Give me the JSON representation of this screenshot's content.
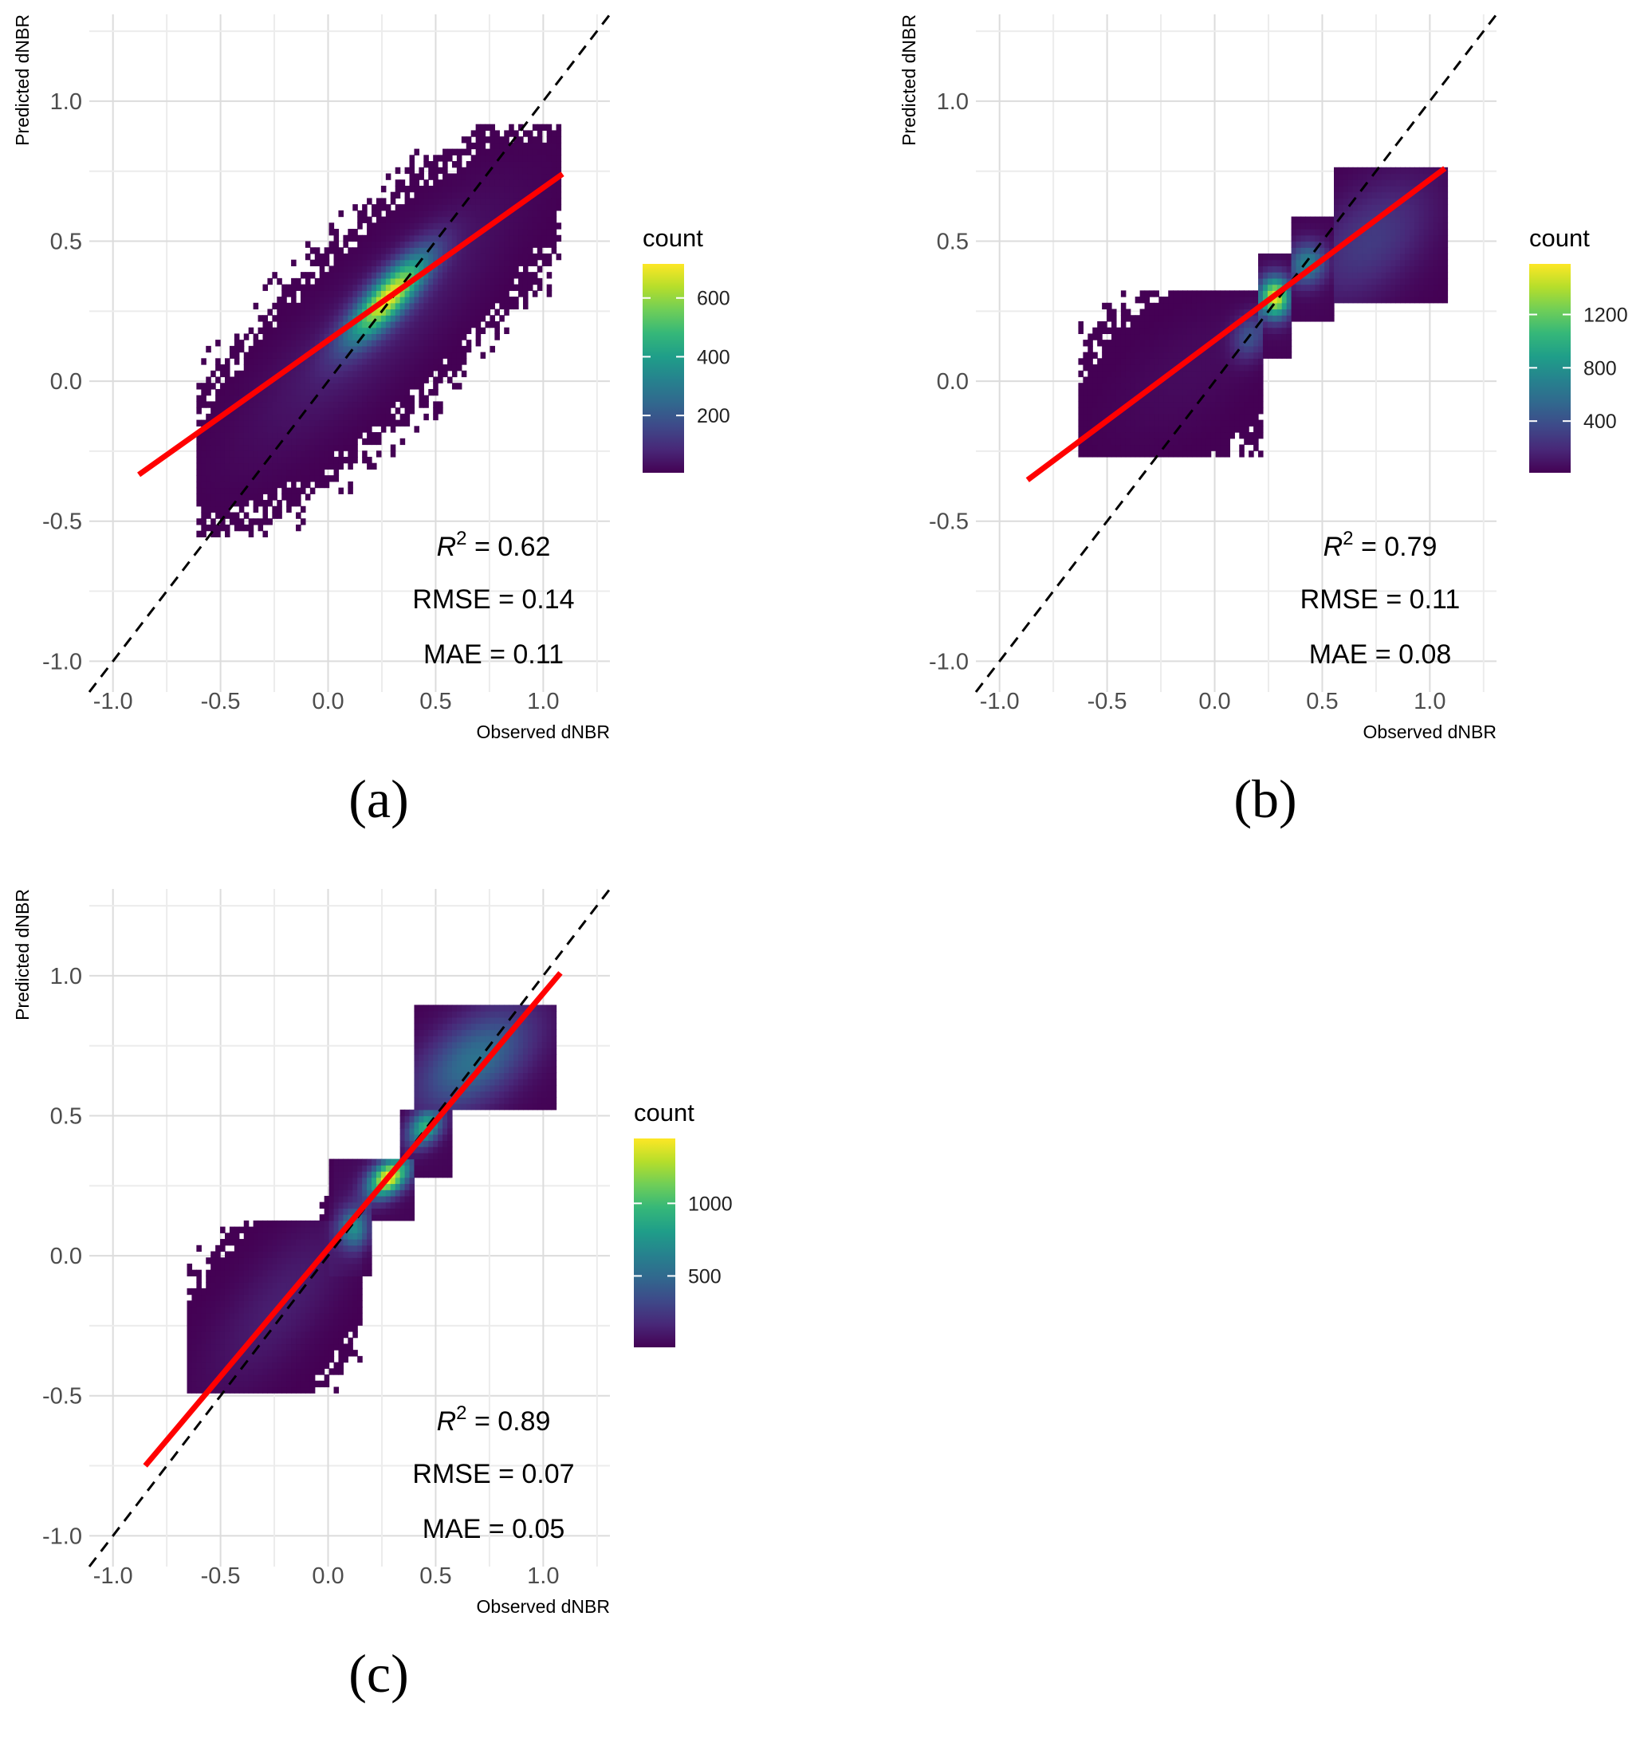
{
  "chart_data": [
    {
      "type": "heatmap",
      "panel_label": "(a)",
      "xlabel": "Observed dNBR",
      "ylabel": "Predicted dNBR",
      "xlim": [
        -1.11,
        1.31
      ],
      "ylim": [
        -1.11,
        1.31
      ],
      "x_ticks": [
        "-1.0",
        "-0.5",
        "0.0",
        "0.5",
        "1.0"
      ],
      "y_ticks": [
        "-1.0",
        "-0.5",
        "0.0",
        "0.5",
        "1.0"
      ],
      "grid": true,
      "fit_line": {
        "color": "#ff0000",
        "x": [
          -0.88,
          1.09
        ],
        "y": [
          -0.334,
          0.74
        ]
      },
      "identity_line": {
        "style": "dashed",
        "color": "#000000",
        "slope": 1,
        "intercept": 0
      },
      "stats": {
        "r2_symbol": "R",
        "r2_sup": "2",
        "r2_text": "= 0.62",
        "rmse": "RMSE = 0.14",
        "mae": "MAE = 0.11"
      },
      "colorbar": {
        "title": "count",
        "ticks": [
          200,
          400,
          600
        ],
        "range": [
          5,
          716
        ],
        "colormap": "viridis"
      }
    },
    {
      "type": "heatmap",
      "panel_label": "(b)",
      "xlabel": "Observed dNBR",
      "ylabel": "Predicted dNBR",
      "xlim": [
        -1.11,
        1.31
      ],
      "ylim": [
        -1.11,
        1.31
      ],
      "x_ticks": [
        "-1.0",
        "-0.5",
        "0.0",
        "0.5",
        "1.0"
      ],
      "y_ticks": [
        "-1.0",
        "-0.5",
        "0.0",
        "0.5",
        "1.0"
      ],
      "grid": true,
      "fit_line": {
        "color": "#ff0000",
        "x": [
          -0.87,
          1.07
        ],
        "y": [
          -0.353,
          0.76
        ]
      },
      "identity_line": {
        "style": "dashed",
        "color": "#000000",
        "slope": 1,
        "intercept": 0
      },
      "stats": {
        "r2_symbol": "R",
        "r2_sup": "2",
        "r2_text": "= 0.79",
        "rmse": "RMSE = 0.11",
        "mae": "MAE = 0.08"
      },
      "colorbar": {
        "title": "count",
        "ticks": [
          400,
          800,
          1200
        ],
        "range": [
          12,
          1580
        ],
        "colormap": "viridis"
      }
    },
    {
      "type": "heatmap",
      "panel_label": "(c)",
      "xlabel": "Observed dNBR",
      "ylabel": "Predicted dNBR",
      "xlim": [
        -1.11,
        1.31
      ],
      "ylim": [
        -1.11,
        1.31
      ],
      "x_ticks": [
        "-1.0",
        "-0.5",
        "0.0",
        "0.5",
        "1.0"
      ],
      "y_ticks": [
        "-1.0",
        "-0.5",
        "0.0",
        "0.5",
        "1.0"
      ],
      "grid": true,
      "fit_line": {
        "color": "#ff0000",
        "x": [
          -0.85,
          1.08
        ],
        "y": [
          -0.75,
          1.01
        ]
      },
      "identity_line": {
        "style": "dashed",
        "color": "#000000",
        "slope": 1,
        "intercept": 0
      },
      "stats": {
        "r2_symbol": "R",
        "r2_sup": "2",
        "r2_text": "= 0.89",
        "rmse": "RMSE = 0.07",
        "mae": "MAE = 0.05"
      },
      "colorbar": {
        "title": "count",
        "ticks": [
          500,
          1000
        ],
        "range": [
          8,
          1447
        ],
        "colormap": "viridis"
      }
    }
  ]
}
